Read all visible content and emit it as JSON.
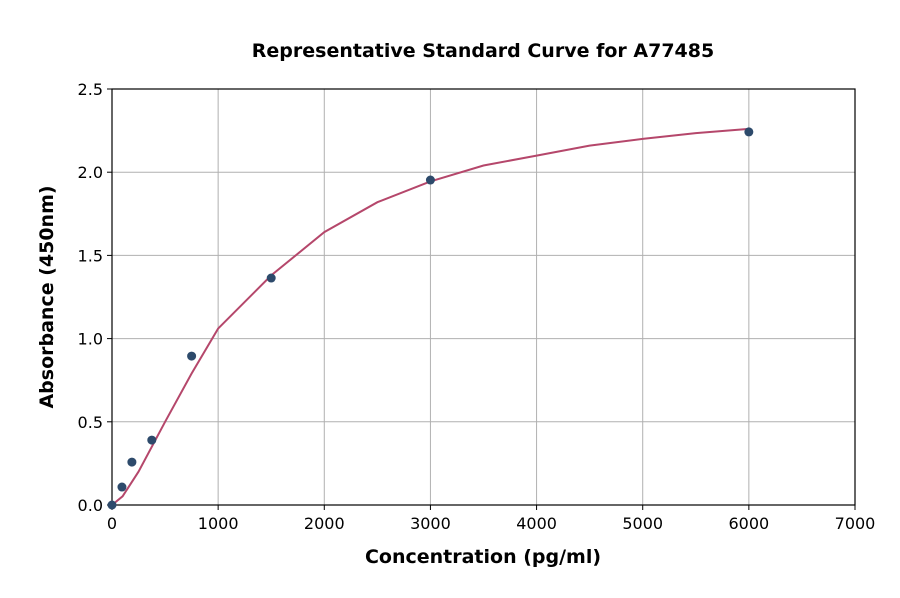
{
  "chart_data": {
    "type": "scatter",
    "title": "Representative Standard Curve for A77485",
    "xlabel": "Concentration (pg/ml)",
    "ylabel": "Absorbance (450nm)",
    "xlim": [
      0,
      7000
    ],
    "ylim": [
      0,
      2.5
    ],
    "xticks": [
      0,
      1000,
      2000,
      3000,
      4000,
      5000,
      6000,
      7000
    ],
    "yticks": [
      "0.0",
      "0.5",
      "1.0",
      "1.5",
      "2.0",
      "2.5"
    ],
    "grid": true,
    "points": [
      {
        "x": 0,
        "y": 0.0
      },
      {
        "x": 93.75,
        "y": 0.108
      },
      {
        "x": 187.5,
        "y": 0.258
      },
      {
        "x": 375,
        "y": 0.39
      },
      {
        "x": 750,
        "y": 0.895
      },
      {
        "x": 1500,
        "y": 1.364
      },
      {
        "x": 3000,
        "y": 1.953
      },
      {
        "x": 6000,
        "y": 2.242
      }
    ],
    "fit_curve": {
      "x": [
        0,
        100,
        250,
        500,
        750,
        1000,
        1500,
        2000,
        2500,
        3000,
        3500,
        4000,
        4500,
        5000,
        5500,
        6000
      ],
      "y": [
        0.0,
        0.052,
        0.2,
        0.5,
        0.79,
        1.06,
        1.38,
        1.64,
        1.82,
        1.945,
        2.04,
        2.1,
        2.16,
        2.2,
        2.235,
        2.26
      ]
    },
    "colors": {
      "points": "#2d4a6b",
      "curve": "#b5476b",
      "grid": "#b0b0b0"
    }
  }
}
